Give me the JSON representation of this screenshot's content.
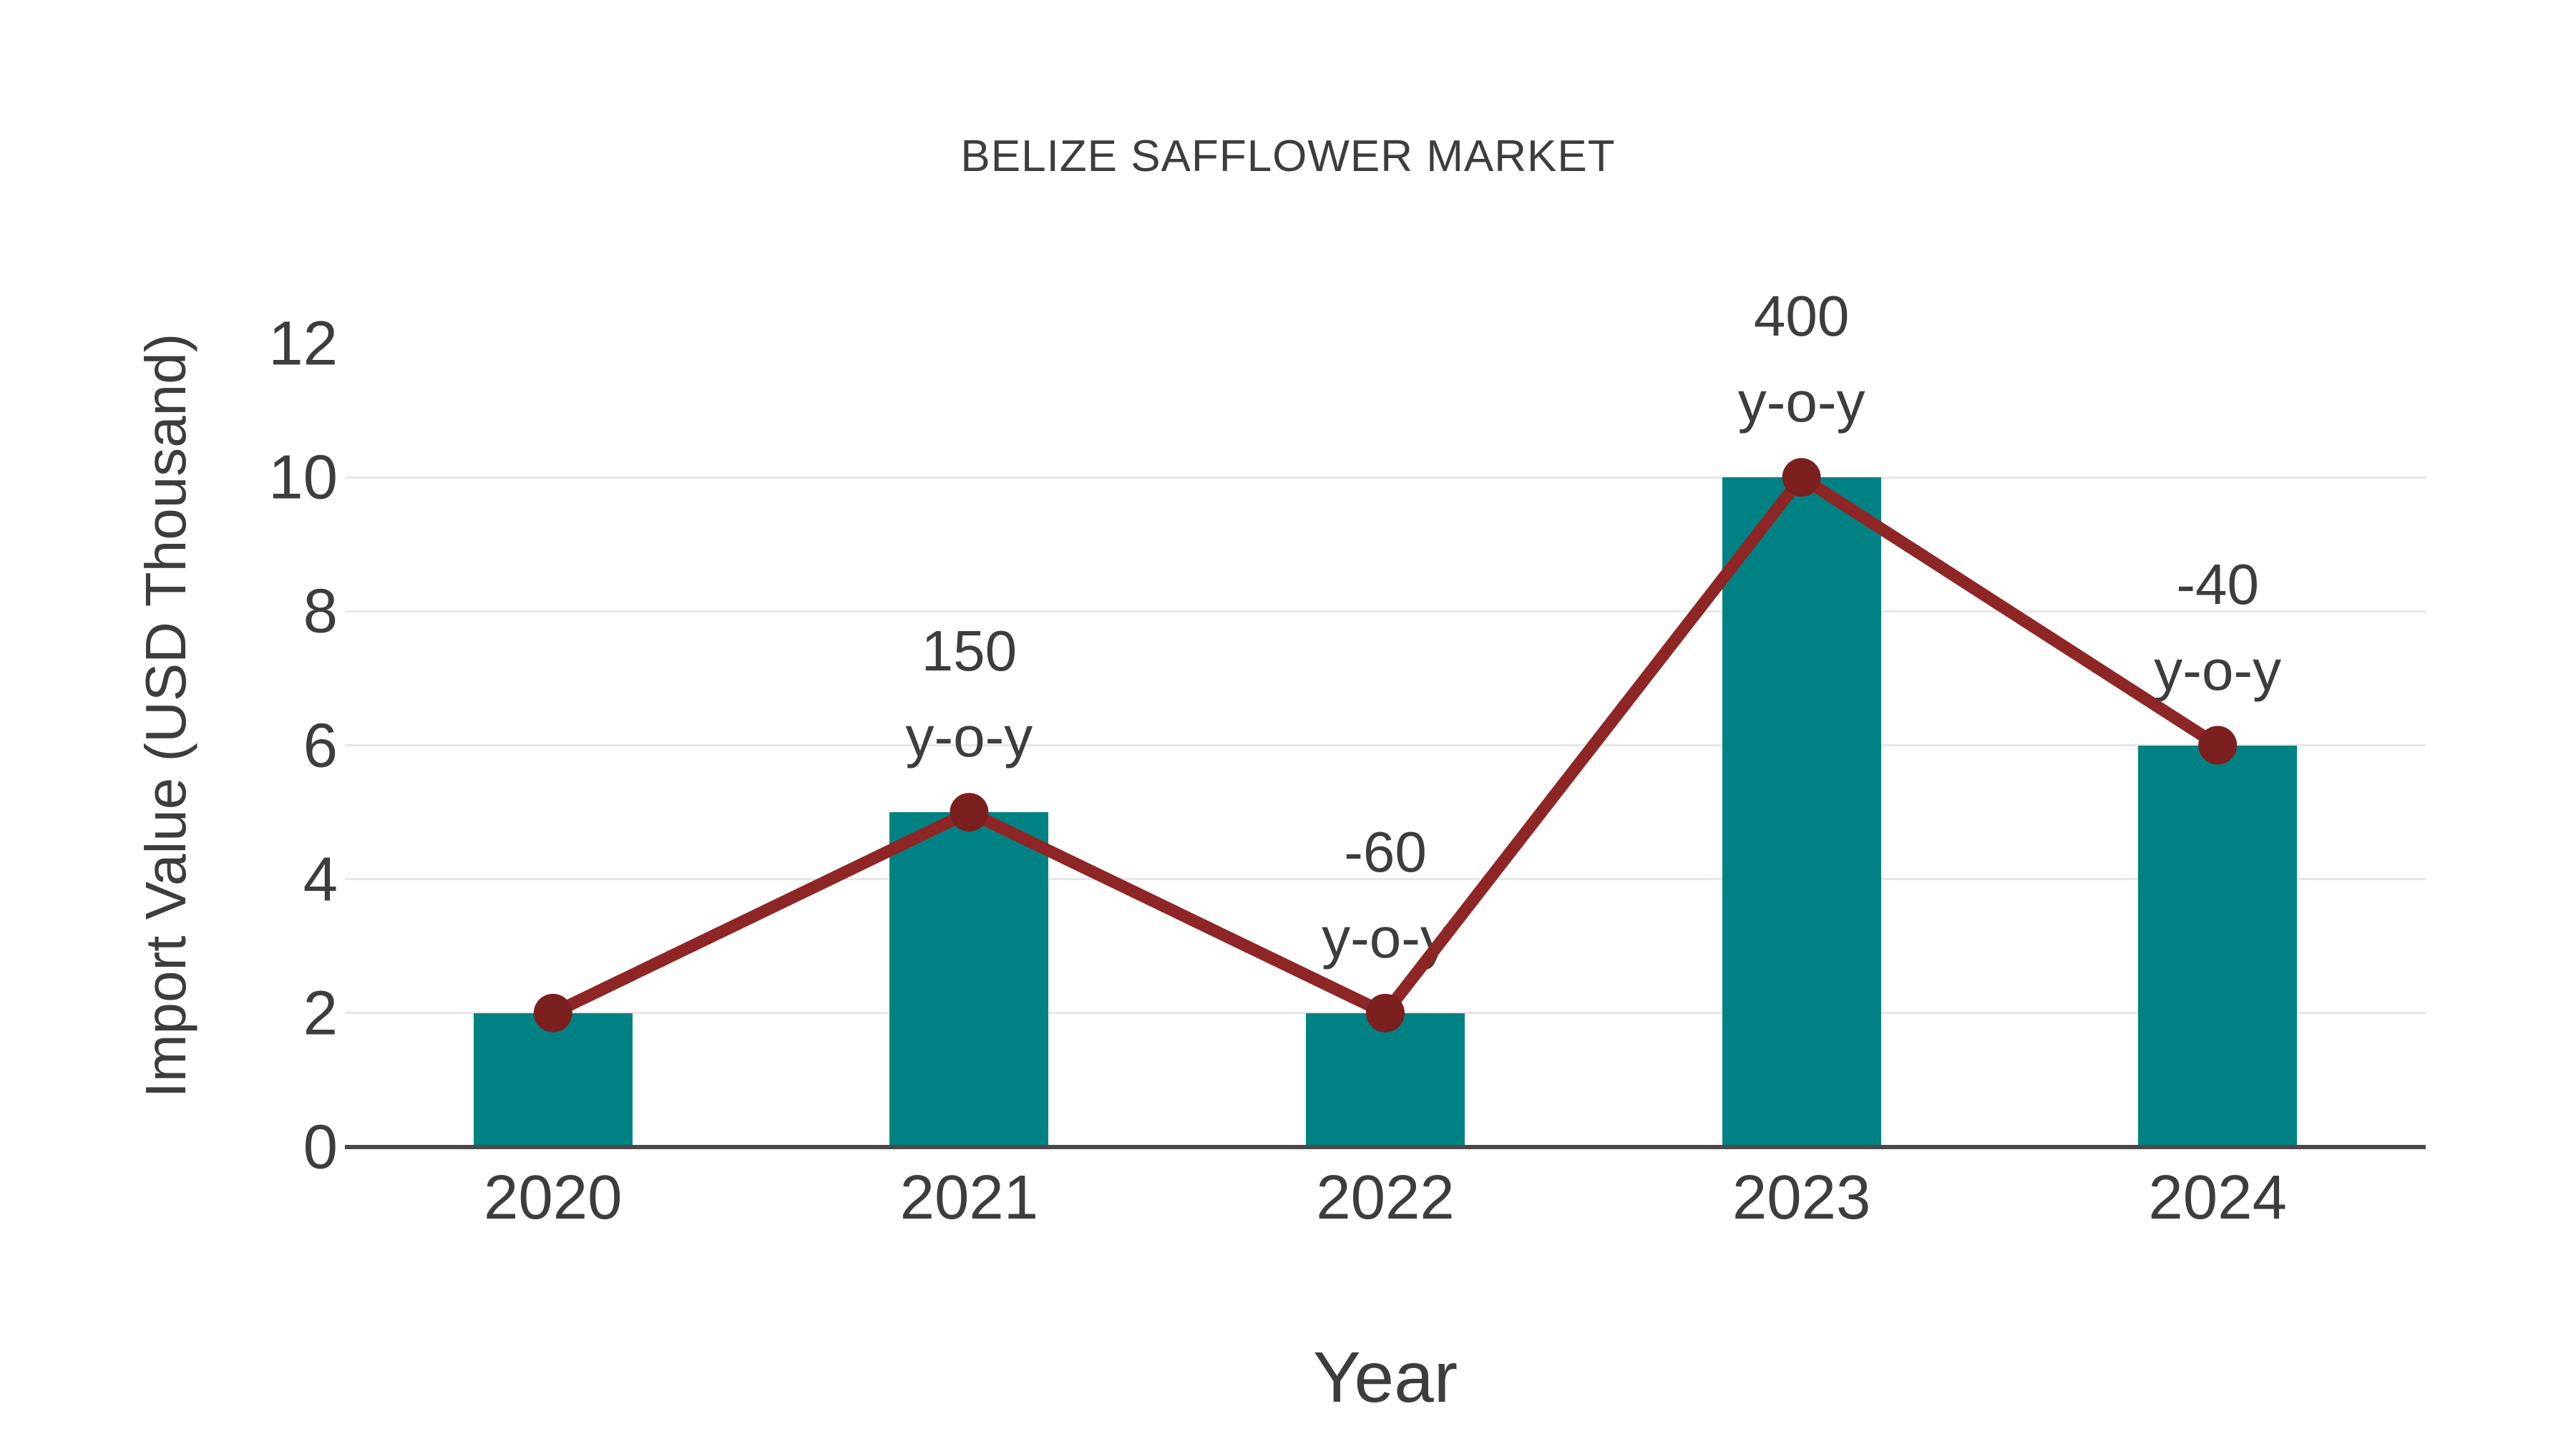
{
  "title": "BELIZE SAFFLOWER MARKET",
  "chart_data": {
    "type": "bar",
    "title": "BELIZE SAFFLOWER MARKET",
    "xlabel": "Year",
    "ylabel": "Import Value (USD Thousand)",
    "categories": [
      "2020",
      "2021",
      "2022",
      "2023",
      "2024"
    ],
    "series": [
      {
        "name": "import-value-bars",
        "type": "bar",
        "values": [
          2,
          5,
          2,
          10,
          6
        ]
      },
      {
        "name": "import-value-trend-line",
        "type": "line",
        "values": [
          2,
          5,
          2,
          10,
          6
        ]
      }
    ],
    "annotations": [
      {
        "category": "2021",
        "line1": "150",
        "line2": "y-o-y"
      },
      {
        "category": "2022",
        "line1": "-60",
        "line2": "y-o-y"
      },
      {
        "category": "2023",
        "line1": "400",
        "line2": "y-o-y"
      },
      {
        "category": "2024",
        "line1": "-40",
        "line2": "y-o-y"
      }
    ],
    "yticks": [
      0,
      2,
      4,
      6,
      8,
      10,
      12
    ],
    "ylim": [
      0,
      12
    ],
    "grid": true,
    "legend": "none",
    "colors": {
      "bar": "#008285",
      "line": "#8e2626",
      "marker": "#7b1f1f",
      "text": "#3d3d3d",
      "grid": "#e7e7e7",
      "axis": "#4a4a4a",
      "background": "#ffffff"
    }
  }
}
